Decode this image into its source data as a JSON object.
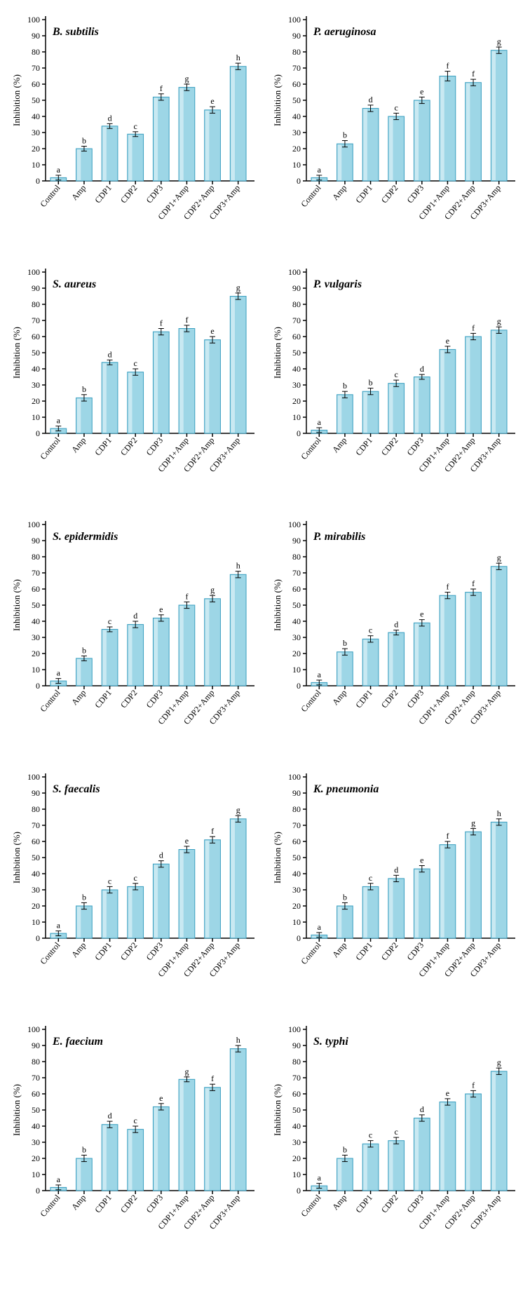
{
  "global": {
    "categories": [
      "Control",
      "Amp",
      "CDP1",
      "CDP2",
      "CDP3",
      "CDP1+Amp",
      "CDP2+Amp",
      "CDP3+Amp"
    ],
    "bar_fill": "#9dd6e6",
    "bar_stroke": "#3a9fc0",
    "error_color": "#000000",
    "axis_color": "#000000",
    "text_color": "#000000",
    "background": "#ffffff",
    "ylabel": "Inhibition (%)",
    "ymin": 0,
    "ymax": 100,
    "ytick_step": 10,
    "bar_width_ratio": 0.62,
    "title_fontsize": 16,
    "title_style": "italic",
    "title_weight": "bold",
    "axis_fontsize": 13,
    "tick_fontsize": 12,
    "letter_fontsize": 12
  },
  "charts": [
    {
      "title": "B. subtilis",
      "values": [
        2,
        20,
        34,
        29,
        52,
        58,
        44,
        71
      ],
      "errors": [
        1.5,
        1.5,
        1.5,
        1.5,
        2,
        2,
        2,
        2
      ],
      "letters": [
        "a",
        "b",
        "d",
        "c",
        "f",
        "g",
        "e",
        "h"
      ]
    },
    {
      "title": "P. aeruginosa",
      "values": [
        2,
        23,
        45,
        40,
        50,
        65,
        61,
        81
      ],
      "errors": [
        1.5,
        2,
        2,
        2,
        2,
        3,
        2,
        2
      ],
      "letters": [
        "a",
        "b",
        "d",
        "c",
        "e",
        "f",
        "f",
        "g"
      ]
    },
    {
      "title": "S.  aureus",
      "values": [
        3,
        22,
        44,
        38,
        63,
        65,
        58,
        85
      ],
      "errors": [
        1.5,
        2,
        1.5,
        2,
        2,
        2,
        2,
        2
      ],
      "letters": [
        "a",
        "b",
        "d",
        "c",
        "f",
        "f",
        "e",
        "g"
      ]
    },
    {
      "title": "P. vulgaris",
      "values": [
        2,
        24,
        26,
        31,
        35,
        52,
        60,
        64
      ],
      "errors": [
        1.5,
        2,
        2,
        2,
        1.5,
        2,
        2,
        2
      ],
      "letters": [
        "a",
        "b",
        "b",
        "c",
        "d",
        "e",
        "f",
        "g"
      ]
    },
    {
      "title": "S. epidermidis",
      "values": [
        3,
        17,
        35,
        38,
        42,
        50,
        54,
        69
      ],
      "errors": [
        1.5,
        1.5,
        1.5,
        2,
        2,
        2,
        2,
        2
      ],
      "letters": [
        "a",
        "b",
        "c",
        "d",
        "e",
        "f",
        "g",
        "h"
      ]
    },
    {
      "title": "P. mirabilis",
      "values": [
        2,
        21,
        29,
        33,
        39,
        56,
        58,
        74
      ],
      "errors": [
        1.5,
        2,
        2,
        1.5,
        2,
        2,
        2,
        2
      ],
      "letters": [
        "a",
        "b",
        "c",
        "d",
        "e",
        "f",
        "f",
        "g"
      ]
    },
    {
      "title": "S. faecalis",
      "values": [
        3,
        20,
        30,
        32,
        46,
        55,
        61,
        74
      ],
      "errors": [
        1.5,
        2,
        2,
        2,
        2,
        2,
        2,
        2
      ],
      "letters": [
        "a",
        "b",
        "c",
        "c",
        "d",
        "e",
        "f",
        "g"
      ]
    },
    {
      "title": "K. pneumonia",
      "values": [
        2,
        20,
        32,
        37,
        43,
        58,
        66,
        72
      ],
      "errors": [
        1.5,
        2,
        2,
        2,
        2,
        2,
        2,
        2
      ],
      "letters": [
        "a",
        "b",
        "c",
        "d",
        "e",
        "f",
        "g",
        "h"
      ]
    },
    {
      "title": "E. faecium",
      "values": [
        2,
        20,
        41,
        38,
        52,
        69,
        64,
        88
      ],
      "errors": [
        1.5,
        2,
        2,
        2,
        2,
        1.5,
        2,
        2
      ],
      "letters": [
        "a",
        "b",
        "d",
        "c",
        "e",
        "g",
        "f",
        "h"
      ]
    },
    {
      "title": "S. typhi",
      "values": [
        3,
        20,
        29,
        31,
        45,
        55,
        60,
        74
      ],
      "errors": [
        1.5,
        2,
        2,
        2,
        2,
        2,
        2,
        2
      ],
      "letters": [
        "a",
        "b",
        "c",
        "c",
        "d",
        "e",
        "f",
        "g"
      ]
    }
  ]
}
